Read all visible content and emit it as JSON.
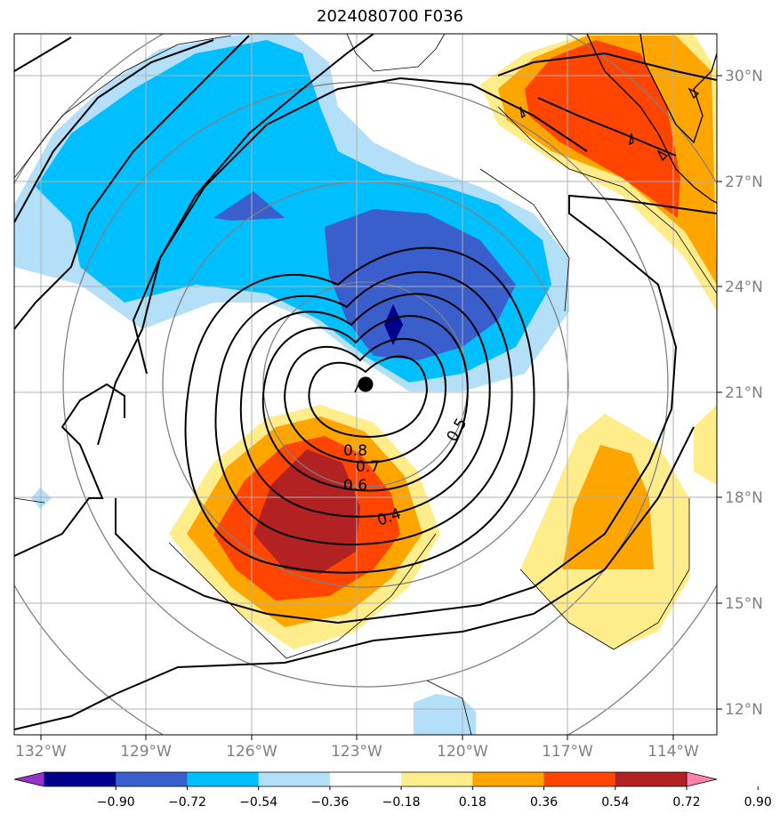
{
  "title": "2024080700 F036",
  "lat_labels": [
    "30°N",
    "27°N",
    "24°N",
    "21°N",
    "18°N",
    "15°N",
    "12°N"
  ],
  "lon_labels": [
    "132°W",
    "129°W",
    "126°W",
    "123°W",
    "120°W",
    "117°W",
    "114°W"
  ],
  "contour_labels": [
    "0.8",
    "0.7",
    "0.6",
    "0.4",
    "0.5"
  ],
  "colorbar": {
    "ticks": [
      "−0.90",
      "−0.72",
      "−0.54",
      "−0.36",
      "−0.18",
      "0.18",
      "0.36",
      "0.54",
      "0.72",
      "0.90"
    ],
    "colors": [
      "#9932cc",
      "#00008b",
      "#3a5fcd",
      "#00bfff",
      "#b3e0f8",
      "#ffffff",
      "#ffec8b",
      "#ffa500",
      "#ff4500",
      "#b22222",
      "#ff82ab"
    ]
  },
  "storm_center": {
    "lat": 21.2,
    "lon": -122.8
  }
}
